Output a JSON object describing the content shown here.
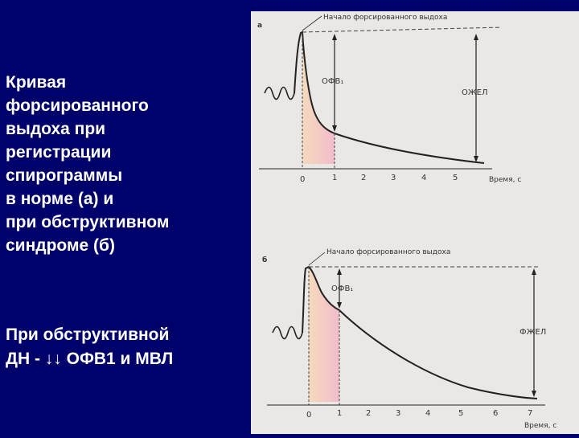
{
  "slide": {
    "title_lines": [
      "Кривая",
      "форсированного",
      "выдоха при",
      "регистрации",
      "спирограммы",
      "в норме (а) и",
      "при обструктивном",
      "синдроме (б)"
    ],
    "conclusion_lines": [
      "При обструктивной",
      "ДН - ↓↓ ОФВ1 и МВЛ"
    ]
  },
  "figure": {
    "panel_a": {
      "panel_label": "а",
      "start_label": "Начало форсированного выдоха",
      "fev1_label": "ОФВ₁",
      "fvc_label": "ОЖЕЛ",
      "time_label": "Время, с",
      "ticks": [
        "0",
        "1",
        "2",
        "3",
        "4",
        "5"
      ]
    },
    "panel_b": {
      "panel_label": "б",
      "start_label": "Начало форсированного выдоха",
      "fev1_label": "ОФВ₁",
      "fvc_label": "ФЖЕЛ",
      "time_label": "Время, с",
      "ticks": [
        "0",
        "1",
        "2",
        "3",
        "4",
        "5",
        "6",
        "7"
      ]
    }
  },
  "colors": {
    "background": "#00006b",
    "text": "#ffffff",
    "figure_bg": "#eae8e4",
    "highlight": "#f3b7c9"
  }
}
